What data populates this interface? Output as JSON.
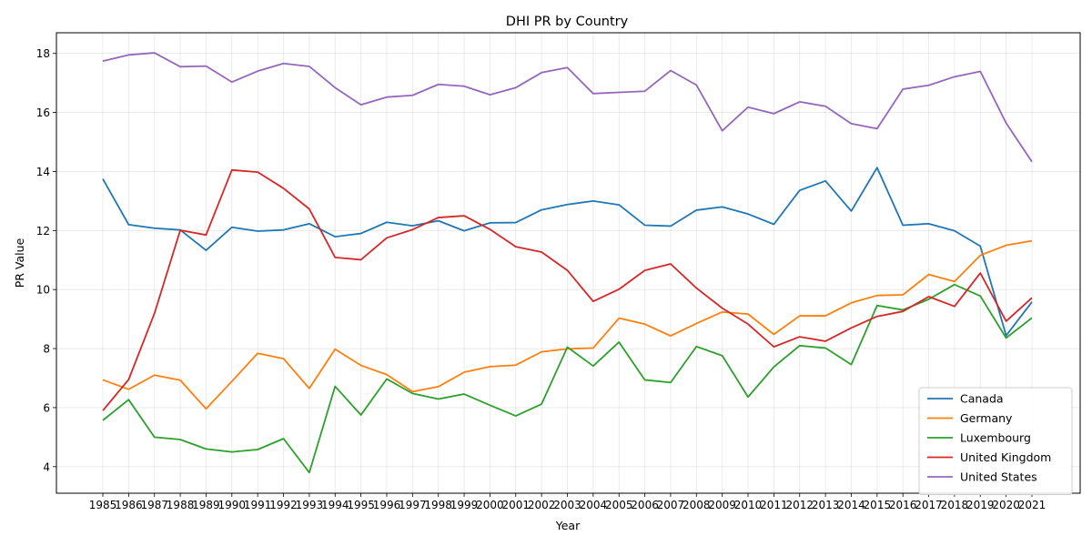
{
  "chart_data": {
    "type": "line",
    "title": "DHI PR by Country",
    "xlabel": "Year",
    "ylabel": "PR Value",
    "x": [
      "1985",
      "1986",
      "1987",
      "1988",
      "1989",
      "1990",
      "1991",
      "1992",
      "1993",
      "1994",
      "1995",
      "1996",
      "1997",
      "1998",
      "1999",
      "2000",
      "2001",
      "2002",
      "2003",
      "2004",
      "2005",
      "2006",
      "2007",
      "2008",
      "2009",
      "2010",
      "2011",
      "2012",
      "2013",
      "2014",
      "2015",
      "2016",
      "2017",
      "2018",
      "2019",
      "2020",
      "2021"
    ],
    "ylim": [
      3.1,
      18.7
    ],
    "yticks": [
      4,
      6,
      8,
      10,
      12,
      14,
      16,
      18
    ],
    "grid": true,
    "legend_position": "lower-right",
    "series": [
      {
        "name": "Canada",
        "color": "#1f77b4",
        "values": [
          13.75,
          12.2,
          12.08,
          12.02,
          11.33,
          12.11,
          11.98,
          12.02,
          12.23,
          11.79,
          11.9,
          12.28,
          12.16,
          12.33,
          11.99,
          12.26,
          12.27,
          12.7,
          12.88,
          13.0,
          12.87,
          12.18,
          12.15,
          12.69,
          12.8,
          12.56,
          12.21,
          13.36,
          13.68,
          12.66,
          14.13,
          12.18,
          12.23,
          11.99,
          11.47,
          8.44,
          9.58
        ]
      },
      {
        "name": "Germany",
        "color": "#ff7f0e",
        "values": [
          6.94,
          6.62,
          7.1,
          6.93,
          5.96,
          6.89,
          7.84,
          7.66,
          6.65,
          7.98,
          7.43,
          7.12,
          6.54,
          6.71,
          7.2,
          7.39,
          7.44,
          7.89,
          7.99,
          8.02,
          9.03,
          8.83,
          8.43,
          8.85,
          9.24,
          9.17,
          8.48,
          9.11,
          9.11,
          9.55,
          9.8,
          9.82,
          10.51,
          10.27,
          11.16,
          11.5,
          11.65
        ]
      },
      {
        "name": "Luxembourg",
        "color": "#2ca02c",
        "values": [
          5.57,
          6.27,
          5.0,
          4.92,
          4.6,
          4.5,
          4.58,
          4.95,
          3.8,
          6.72,
          5.75,
          6.97,
          6.48,
          6.29,
          6.46,
          6.08,
          5.72,
          6.12,
          8.05,
          7.41,
          8.22,
          6.94,
          6.85,
          8.07,
          7.76,
          6.36,
          7.38,
          8.1,
          8.02,
          7.46,
          9.46,
          9.31,
          9.67,
          10.17,
          9.78,
          8.36,
          9.04
        ]
      },
      {
        "name": "United Kingdom",
        "color": "#d62728",
        "values": [
          5.9,
          6.95,
          9.19,
          12.01,
          11.85,
          14.05,
          13.98,
          13.43,
          12.73,
          11.09,
          11.01,
          11.75,
          12.03,
          12.44,
          12.5,
          12.04,
          11.45,
          11.27,
          10.65,
          9.6,
          10.01,
          10.65,
          10.87,
          10.05,
          9.37,
          8.83,
          8.06,
          8.4,
          8.25,
          8.7,
          9.09,
          9.26,
          9.76,
          9.43,
          10.56,
          8.93,
          9.72
        ]
      },
      {
        "name": "United States",
        "color": "#9467bd",
        "values": [
          17.74,
          17.95,
          18.02,
          17.55,
          17.57,
          17.03,
          17.4,
          17.66,
          17.56,
          16.84,
          16.26,
          16.52,
          16.58,
          16.95,
          16.89,
          16.6,
          16.84,
          17.35,
          17.52,
          16.64,
          16.68,
          16.72,
          17.42,
          16.93,
          15.38,
          16.18,
          15.96,
          16.36,
          16.21,
          15.62,
          15.45,
          16.79,
          16.92,
          17.21,
          17.39,
          15.64,
          14.33
        ]
      }
    ]
  }
}
